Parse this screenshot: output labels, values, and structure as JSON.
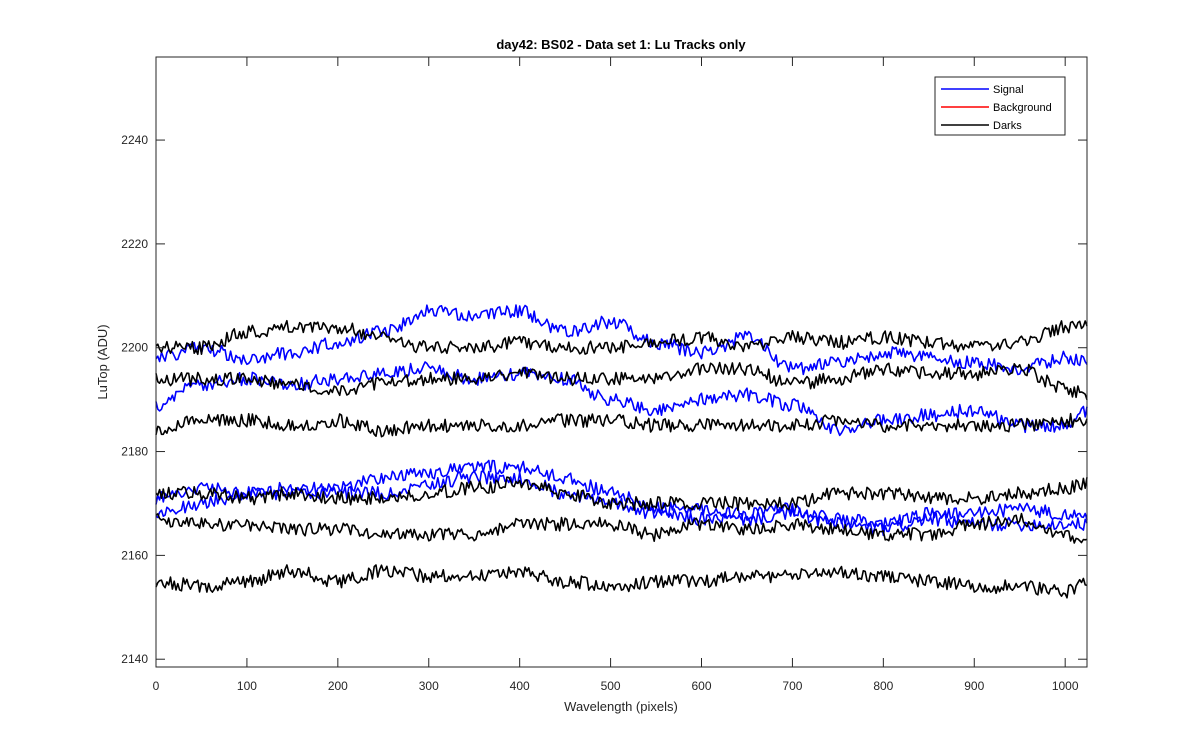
{
  "chart_data": {
    "type": "line",
    "title": "day42: BS02 - Data set 1: Lu Tracks only",
    "xlabel": "Wavelength (pixels)",
    "ylabel": "LuTop (ADU)",
    "xlim": [
      0,
      1024
    ],
    "ylim": [
      2138.5,
      2256
    ],
    "xticks": [
      0,
      100,
      200,
      300,
      400,
      500,
      600,
      700,
      800,
      900,
      1000
    ],
    "yticks": [
      2140,
      2160,
      2180,
      2200,
      2220,
      2240
    ],
    "grid": false,
    "legend": {
      "placement": "top-right",
      "entries": [
        {
          "name": "Signal",
          "color": "#0000ff"
        },
        {
          "name": "Background",
          "color": "#ff0000"
        },
        {
          "name": "Darks",
          "color": "#000000"
        }
      ]
    },
    "series": [
      {
        "group": "Signal",
        "color": "#0000ff",
        "x": [
          0,
          50,
          100,
          150,
          200,
          250,
          300,
          350,
          400,
          450,
          500,
          550,
          600,
          650,
          700,
          750,
          800,
          850,
          900,
          950,
          1000,
          1024
        ],
        "y": [
          2198,
          2200,
          2198,
          2199,
          2201,
          2203,
          2207,
          2206,
          2207,
          2203,
          2205,
          2201,
          2199,
          2202,
          2196,
          2197,
          2199,
          2198,
          2197,
          2196,
          2198,
          2197
        ]
      },
      {
        "group": "Signal",
        "color": "#0000ff",
        "x": [
          0,
          50,
          100,
          150,
          200,
          250,
          300,
          350,
          400,
          450,
          500,
          550,
          600,
          650,
          700,
          750,
          800,
          850,
          900,
          950,
          1000,
          1024
        ],
        "y": [
          2189,
          2193,
          2194,
          2193,
          2194,
          2195,
          2196,
          2194,
          2195,
          2194,
          2190,
          2188,
          2190,
          2191,
          2189,
          2184,
          2186,
          2187,
          2188,
          2185,
          2185,
          2188
        ]
      },
      {
        "group": "Signal",
        "color": "#0000ff",
        "x": [
          0,
          50,
          100,
          150,
          200,
          250,
          300,
          350,
          400,
          450,
          500,
          550,
          600,
          650,
          700,
          750,
          800,
          850,
          900,
          950,
          1000,
          1024
        ],
        "y": [
          2171,
          2173,
          2172,
          2173,
          2173,
          2175,
          2176,
          2177,
          2177,
          2175,
          2172,
          2169,
          2169,
          2168,
          2169,
          2167,
          2166,
          2168,
          2168,
          2169,
          2168,
          2167
        ]
      },
      {
        "group": "Signal",
        "color": "#0000ff",
        "x": [
          0,
          50,
          100,
          150,
          200,
          250,
          300,
          350,
          400,
          450,
          500,
          550,
          600,
          650,
          700,
          750,
          800,
          850,
          900,
          950,
          1000,
          1024
        ],
        "y": [
          2168,
          2170,
          2172,
          2172,
          2172,
          2172,
          2174,
          2175,
          2175,
          2172,
          2170,
          2168,
          2167,
          2167,
          2168,
          2166,
          2165,
          2167,
          2166,
          2166,
          2166,
          2166
        ]
      },
      {
        "group": "Darks",
        "color": "#000000",
        "x": [
          0,
          50,
          100,
          150,
          200,
          250,
          300,
          350,
          400,
          450,
          500,
          550,
          600,
          650,
          700,
          750,
          800,
          850,
          900,
          950,
          1000,
          1024
        ],
        "y": [
          2200,
          2200,
          2203,
          2204,
          2204,
          2202,
          2200,
          2200,
          2201,
          2200,
          2200,
          2201,
          2202,
          2200,
          2202,
          2201,
          2202,
          2201,
          2200,
          2201,
          2204,
          2204
        ]
      },
      {
        "group": "Darks",
        "color": "#000000",
        "x": [
          0,
          50,
          100,
          150,
          200,
          250,
          300,
          350,
          400,
          450,
          500,
          550,
          600,
          650,
          700,
          750,
          800,
          850,
          900,
          950,
          1000,
          1024
        ],
        "y": [
          2194,
          2194,
          2194,
          2193,
          2192,
          2193,
          2194,
          2194,
          2195,
          2194,
          2194,
          2194,
          2196,
          2196,
          2193,
          2194,
          2196,
          2195,
          2195,
          2196,
          2192,
          2191
        ]
      },
      {
        "group": "Darks",
        "color": "#000000",
        "x": [
          0,
          50,
          100,
          150,
          200,
          250,
          300,
          350,
          400,
          450,
          500,
          550,
          600,
          650,
          700,
          750,
          800,
          850,
          900,
          950,
          1000,
          1024
        ],
        "y": [
          2184,
          2186,
          2186,
          2185,
          2186,
          2184,
          2185,
          2185,
          2185,
          2186,
          2186,
          2185,
          2185,
          2185,
          2185,
          2186,
          2185,
          2185,
          2185,
          2185,
          2186,
          2186
        ]
      },
      {
        "group": "Darks",
        "color": "#000000",
        "x": [
          0,
          50,
          100,
          150,
          200,
          250,
          300,
          350,
          400,
          450,
          500,
          550,
          600,
          650,
          700,
          750,
          800,
          850,
          900,
          950,
          1000,
          1024
        ],
        "y": [
          2172,
          2172,
          2171,
          2172,
          2171,
          2171,
          2172,
          2173,
          2174,
          2172,
          2170,
          2170,
          2170,
          2170,
          2170,
          2172,
          2172,
          2171,
          2171,
          2172,
          2173,
          2174
        ]
      },
      {
        "group": "Darks",
        "color": "#000000",
        "x": [
          0,
          50,
          100,
          150,
          200,
          250,
          300,
          350,
          400,
          450,
          500,
          550,
          600,
          650,
          700,
          750,
          800,
          850,
          900,
          950,
          1000,
          1024
        ],
        "y": [
          2167,
          2166,
          2166,
          2165,
          2165,
          2164,
          2164,
          2164,
          2166,
          2166,
          2166,
          2164,
          2166,
          2165,
          2166,
          2165,
          2164,
          2164,
          2166,
          2167,
          2164,
          2163
        ]
      },
      {
        "group": "Darks",
        "color": "#000000",
        "x": [
          0,
          50,
          100,
          150,
          200,
          250,
          300,
          350,
          400,
          450,
          500,
          550,
          600,
          650,
          700,
          750,
          800,
          850,
          900,
          950,
          1000,
          1024
        ],
        "y": [
          2155,
          2154,
          2155,
          2157,
          2155,
          2157,
          2156,
          2156,
          2157,
          2155,
          2154,
          2155,
          2155,
          2156,
          2156,
          2157,
          2156,
          2155,
          2154,
          2154,
          2153,
          2155
        ]
      }
    ]
  }
}
